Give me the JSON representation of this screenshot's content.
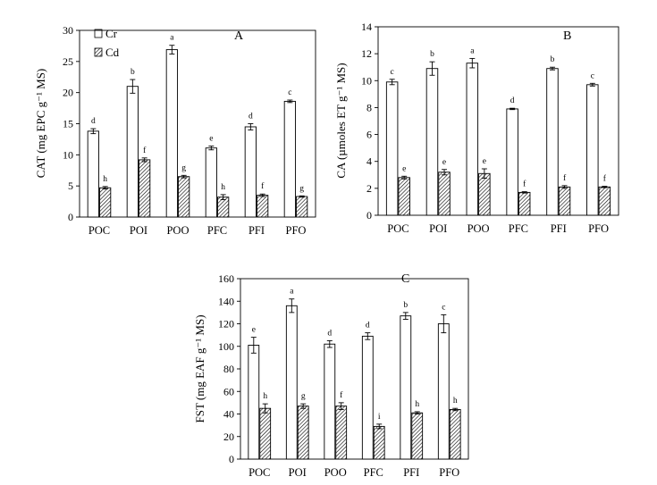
{
  "legend": {
    "cr": "Cr",
    "cd": "Cd"
  },
  "colors": {
    "cr": "#ffffff",
    "axis": "#000000"
  },
  "chart_data": [
    {
      "type": "bar",
      "title": "A",
      "ylabel": "CAT (mg EPC g⁻¹ MS)",
      "ylim": [
        0,
        30
      ],
      "yticks": [
        0,
        5,
        10,
        15,
        20,
        25,
        30
      ],
      "categories": [
        "POC",
        "POI",
        "POO",
        "PFC",
        "PFI",
        "PFO"
      ],
      "series": [
        {
          "name": "Cr",
          "values": [
            13.8,
            21.0,
            26.9,
            11.1,
            14.5,
            18.6
          ],
          "errors": [
            0.4,
            1.1,
            0.7,
            0.3,
            0.5,
            0.2
          ],
          "letters": [
            "d",
            "b",
            "a",
            "e",
            "d",
            "c"
          ]
        },
        {
          "name": "Cd",
          "values": [
            4.7,
            9.2,
            6.5,
            3.2,
            3.5,
            3.3
          ],
          "errors": [
            0.2,
            0.3,
            0.2,
            0.4,
            0.2,
            0.1
          ],
          "letters": [
            "h",
            "f",
            "g",
            "h",
            "f",
            "g"
          ]
        }
      ]
    },
    {
      "type": "bar",
      "title": "B",
      "ylabel": "CA (µmoles ET g⁻¹ MS)",
      "ylim": [
        0,
        14
      ],
      "yticks": [
        0,
        2,
        4,
        6,
        8,
        10,
        12,
        14
      ],
      "categories": [
        "POC",
        "POI",
        "POO",
        "PFC",
        "PFI",
        "PFO"
      ],
      "series": [
        {
          "name": "Cr",
          "values": [
            9.9,
            10.9,
            11.3,
            7.9,
            10.9,
            9.7
          ],
          "errors": [
            0.2,
            0.5,
            0.35,
            0.05,
            0.1,
            0.1
          ],
          "letters": [
            "c",
            "b",
            "a",
            "d",
            "b",
            "c"
          ]
        },
        {
          "name": "Cd",
          "values": [
            2.8,
            3.2,
            3.1,
            1.7,
            2.1,
            2.1
          ],
          "errors": [
            0.1,
            0.2,
            0.35,
            0.05,
            0.1,
            0.05
          ],
          "letters": [
            "e",
            "e",
            "e",
            "f",
            "f",
            "f"
          ]
        }
      ]
    },
    {
      "type": "bar",
      "title": "C",
      "ylabel": "FST (mg EAF g⁻¹ MS)",
      "ylim": [
        0,
        160
      ],
      "yticks": [
        0,
        20,
        40,
        60,
        80,
        100,
        120,
        140,
        160
      ],
      "categories": [
        "POC",
        "POI",
        "POO",
        "PFC",
        "PFI",
        "PFO"
      ],
      "series": [
        {
          "name": "Cr",
          "values": [
            101,
            136,
            102,
            109,
            127,
            120
          ],
          "errors": [
            7,
            6,
            3,
            3,
            3,
            8
          ],
          "letters": [
            "e",
            "a",
            "d",
            "d",
            "b",
            "c"
          ]
        },
        {
          "name": "Cd",
          "values": [
            45,
            47,
            47,
            29,
            41,
            44
          ],
          "errors": [
            4,
            2,
            3,
            2,
            1,
            1
          ],
          "letters": [
            "h",
            "g",
            "f",
            "i",
            "h",
            "h"
          ]
        }
      ]
    }
  ]
}
